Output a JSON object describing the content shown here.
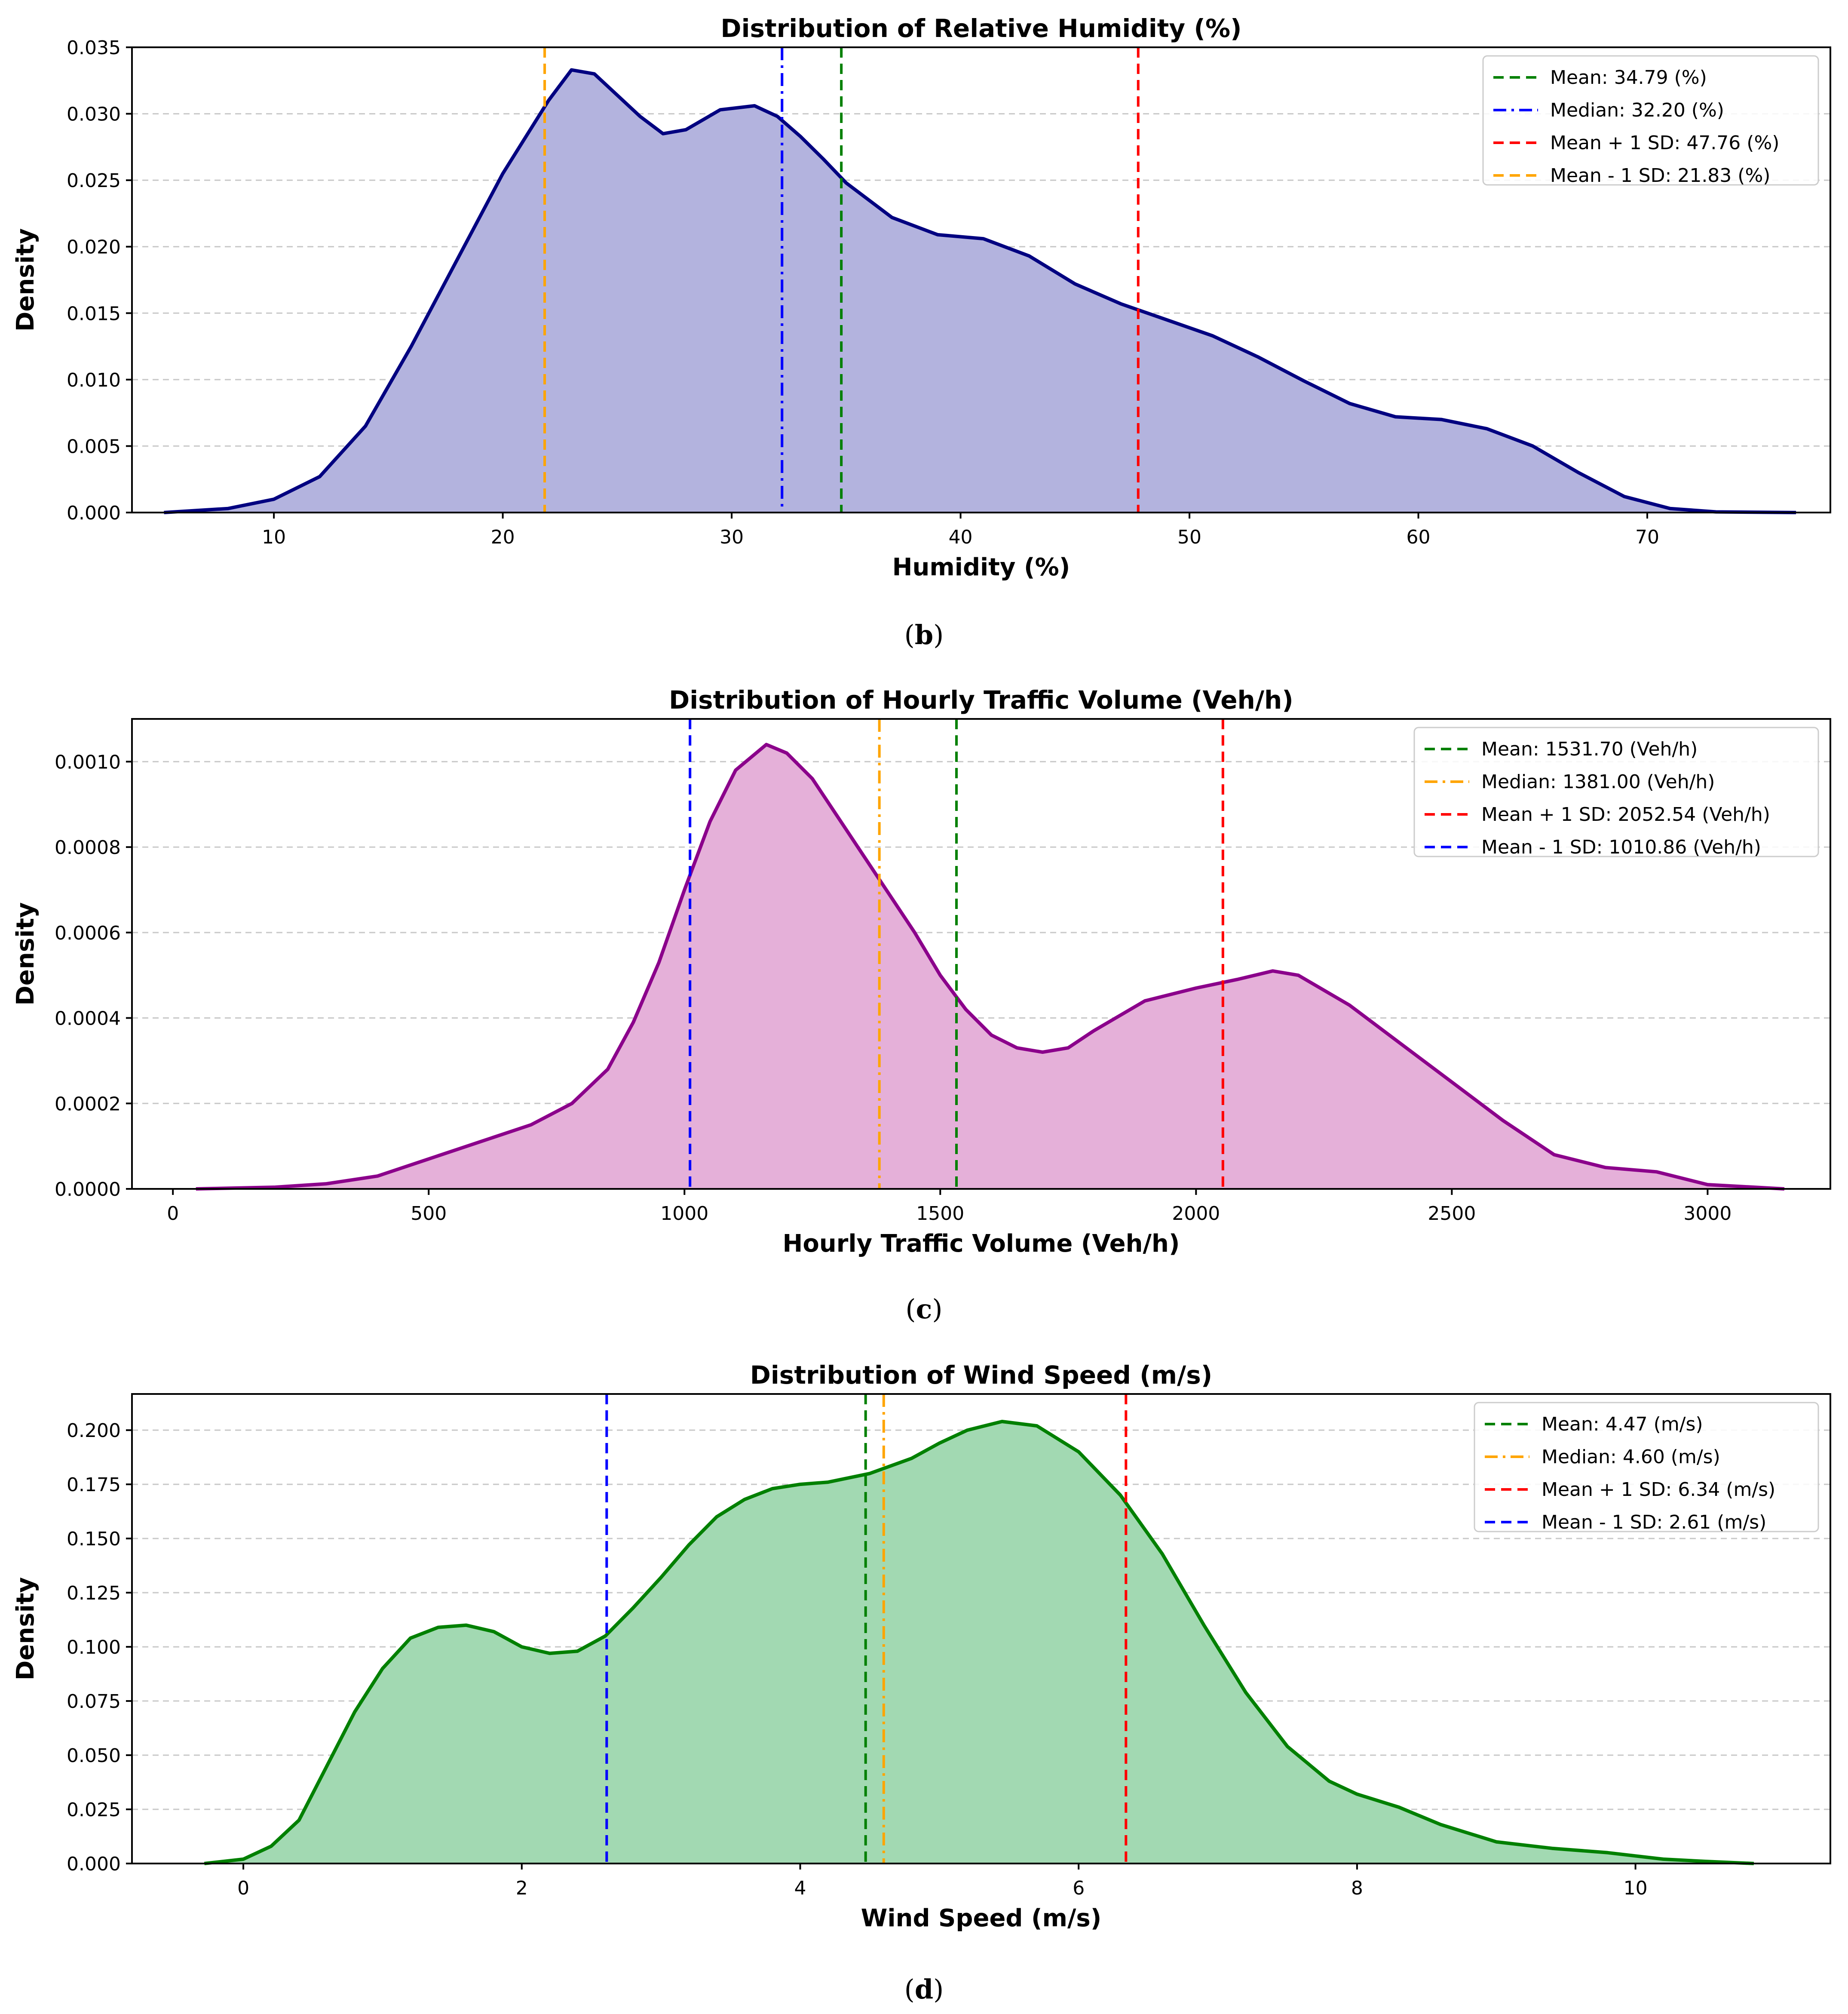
{
  "chart_data": [
    {
      "type": "area",
      "subtype": "kde-density",
      "title": "Distribution of Relative Humidity (%)",
      "xlabel": "Humidity (%)",
      "ylabel": "Density",
      "caption": "b",
      "xlim": [
        3.8,
        78
      ],
      "ylim": [
        0,
        0.035
      ],
      "xticks": [
        10,
        20,
        30,
        40,
        50,
        60,
        70
      ],
      "yticks": [
        0.0,
        0.005,
        0.01,
        0.015,
        0.02,
        0.025,
        0.03,
        0.035
      ],
      "ytick_decimals": 3,
      "grid": "y-dashed",
      "legend_position": "top-right",
      "line_color": "#000080",
      "fill_color": "#B3B3DE",
      "curve": {
        "x": [
          5.2,
          8,
          10,
          12,
          14,
          16,
          18,
          20,
          22,
          23,
          24,
          26,
          27,
          28,
          29.5,
          31,
          32,
          33,
          34,
          35,
          37,
          39,
          41,
          43,
          45,
          47,
          49,
          51,
          53,
          55,
          57,
          59,
          61,
          63,
          65,
          67,
          69,
          71,
          73,
          76.5
        ],
        "y": [
          0.0,
          0.0003,
          0.001,
          0.0027,
          0.0065,
          0.0125,
          0.019,
          0.0255,
          0.031,
          0.0333,
          0.033,
          0.0298,
          0.0285,
          0.0288,
          0.0303,
          0.0306,
          0.0298,
          0.0283,
          0.0266,
          0.0248,
          0.0222,
          0.0209,
          0.0206,
          0.0193,
          0.0172,
          0.0157,
          0.0145,
          0.0133,
          0.0117,
          0.0099,
          0.0082,
          0.0072,
          0.007,
          0.0063,
          0.005,
          0.003,
          0.0012,
          0.0003,
          5e-05,
          0.0
        ]
      },
      "lines": [
        {
          "label": "Mean: 34.79 (%)",
          "x": 34.79,
          "color": "#008000",
          "style": "dashed"
        },
        {
          "label": "Median: 32.20 (%)",
          "x": 32.2,
          "color": "#0000FF",
          "style": "dashdot"
        },
        {
          "label": "Mean + 1 SD: 47.76 (%)",
          "x": 47.76,
          "color": "#FF0000",
          "style": "dashed"
        },
        {
          "label": "Mean - 1 SD: 21.83 (%)",
          "x": 21.83,
          "color": "#FFA500",
          "style": "dashed"
        }
      ]
    },
    {
      "type": "area",
      "subtype": "kde-density",
      "title": "Distribution of Hourly Traffic Volume (Veh/h)",
      "xlabel": "Hourly Traffic Volume (Veh/h)",
      "ylabel": "Density",
      "caption": "c",
      "xlim": [
        -80,
        3240
      ],
      "ylim": [
        0,
        0.0011
      ],
      "xticks": [
        0,
        500,
        1000,
        1500,
        2000,
        2500,
        3000
      ],
      "yticks": [
        0.0,
        0.0002,
        0.0004,
        0.0006,
        0.0008,
        0.001
      ],
      "ytick_decimals": 4,
      "grid": "y-dashed",
      "legend_position": "top-right",
      "line_color": "#8B008B",
      "fill_color": "#E5B0D9",
      "curve": {
        "x": [
          45,
          200,
          300,
          400,
          500,
          600,
          700,
          780,
          850,
          900,
          950,
          1000,
          1050,
          1100,
          1160,
          1200,
          1250,
          1300,
          1350,
          1400,
          1450,
          1500,
          1550,
          1600,
          1650,
          1700,
          1750,
          1800,
          1900,
          2000,
          2080,
          2150,
          2200,
          2300,
          2400,
          2500,
          2600,
          2700,
          2800,
          2900,
          3000,
          3150
        ],
        "y": [
          0.0,
          4e-06,
          1.2e-05,
          3e-05,
          7e-05,
          0.00011,
          0.00015,
          0.0002,
          0.00028,
          0.00039,
          0.00053,
          0.0007,
          0.00086,
          0.00098,
          0.00104,
          0.00102,
          0.00096,
          0.00087,
          0.00078,
          0.00069,
          0.0006,
          0.0005,
          0.00042,
          0.00036,
          0.00033,
          0.00032,
          0.00033,
          0.00037,
          0.00044,
          0.00047,
          0.00049,
          0.00051,
          0.0005,
          0.00043,
          0.00034,
          0.00025,
          0.00016,
          8e-05,
          5e-05,
          4e-05,
          1e-05,
          0.0
        ]
      },
      "lines": [
        {
          "label": "Mean: 1531.70 (Veh/h)",
          "x": 1531.7,
          "color": "#008000",
          "style": "dashed"
        },
        {
          "label": "Median: 1381.00 (Veh/h)",
          "x": 1381.0,
          "color": "#FFA500",
          "style": "dashdot"
        },
        {
          "label": "Mean + 1 SD: 2052.54 (Veh/h)",
          "x": 2052.54,
          "color": "#FF0000",
          "style": "dashed"
        },
        {
          "label": "Mean - 1 SD: 1010.86 (Veh/h)",
          "x": 1010.86,
          "color": "#0000FF",
          "style": "dashed"
        }
      ]
    },
    {
      "type": "area",
      "subtype": "kde-density",
      "title": "Distribution of Wind Speed (m/s)",
      "xlabel": "Wind Speed (m/s)",
      "ylabel": "Density",
      "caption": "d",
      "xlim": [
        -0.8,
        11.4
      ],
      "ylim": [
        0,
        0.2167
      ],
      "xticks": [
        0,
        2,
        4,
        6,
        8,
        10
      ],
      "yticks": [
        0.0,
        0.025,
        0.05,
        0.075,
        0.1,
        0.125,
        0.15,
        0.175,
        0.2
      ],
      "ytick_decimals": 3,
      "grid": "y-dashed",
      "legend_position": "top-right",
      "line_color": "#008000",
      "fill_color": "#A2D9B2",
      "curve": {
        "x": [
          -0.28,
          0,
          0.2,
          0.4,
          0.6,
          0.8,
          1.0,
          1.2,
          1.4,
          1.6,
          1.8,
          2.0,
          2.2,
          2.4,
          2.6,
          2.8,
          3.0,
          3.2,
          3.4,
          3.6,
          3.8,
          4.0,
          4.2,
          4.5,
          4.8,
          5.0,
          5.2,
          5.45,
          5.7,
          6.0,
          6.3,
          6.6,
          6.9,
          7.2,
          7.5,
          7.8,
          8.0,
          8.3,
          8.6,
          9.0,
          9.4,
          9.8,
          10.2,
          10.5,
          10.85
        ],
        "y": [
          0.0,
          0.002,
          0.008,
          0.02,
          0.045,
          0.07,
          0.09,
          0.104,
          0.109,
          0.11,
          0.107,
          0.1,
          0.097,
          0.098,
          0.105,
          0.118,
          0.132,
          0.147,
          0.16,
          0.168,
          0.173,
          0.175,
          0.176,
          0.18,
          0.187,
          0.194,
          0.2,
          0.204,
          0.202,
          0.19,
          0.17,
          0.143,
          0.11,
          0.079,
          0.054,
          0.038,
          0.032,
          0.026,
          0.018,
          0.01,
          0.007,
          0.005,
          0.002,
          0.001,
          0.0
        ]
      },
      "lines": [
        {
          "label": "Mean: 4.47 (m/s)",
          "x": 4.47,
          "color": "#008000",
          "style": "dashed"
        },
        {
          "label": "Median: 4.60 (m/s)",
          "x": 4.6,
          "color": "#FFA500",
          "style": "dashdot"
        },
        {
          "label": "Mean + 1 SD: 6.34 (m/s)",
          "x": 6.34,
          "color": "#FF0000",
          "style": "dashed"
        },
        {
          "label": "Mean - 1 SD: 2.61 (m/s)",
          "x": 2.61,
          "color": "#0000FF",
          "style": "dashed"
        }
      ]
    }
  ]
}
